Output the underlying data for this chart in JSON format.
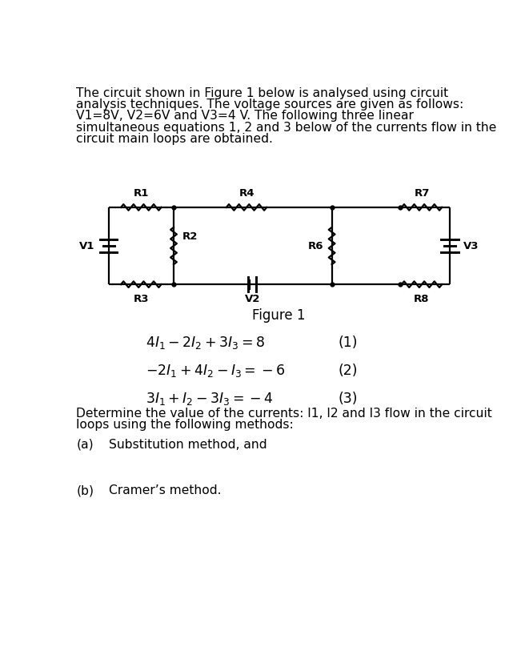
{
  "background_color": "#ffffff",
  "text_color": "#000000",
  "intro_text_line1": "The circuit shown in Figure 1 below is analysed using circuit",
  "intro_text_line2": "analysis techniques. The voltage sources are given as follows:",
  "intro_text_line3": "V1=8V, V2=6V and V3=4 V. The following three linear",
  "intro_text_line4": "simultaneous equations 1, 2 and 3 below of the currents flow in the",
  "intro_text_line5": "circuit main loops are obtained.",
  "figure_label": "Figure 1",
  "eq1": "4$I_1$ − 2$I_2$ + 3$I_3$ = 8",
  "eq2": "−2$I_1$ + 4$I_2$ − $I_3$ = −6",
  "eq3": "3$I_1$ + $I_2$ − 3$I_3$ = −4",
  "eq1_num": "(1)",
  "eq2_num": "(2)",
  "eq3_num": "(3)",
  "det_text_line1": "Determine the value of the currents: I1, I2 and I3 flow in the circuit",
  "det_text_line2": "loops using the following methods:",
  "part_a_label": "(a)",
  "part_a_text": "Substitution method, and",
  "part_b_label": "(b)",
  "part_b_text": "Cramer’s method.",
  "line_color": "#000000",
  "font_size_intro": 11.2,
  "font_size_eq": 12.5,
  "font_size_fig_label": 12,
  "font_size_body": 11.2,
  "font_size_component": 9.5
}
